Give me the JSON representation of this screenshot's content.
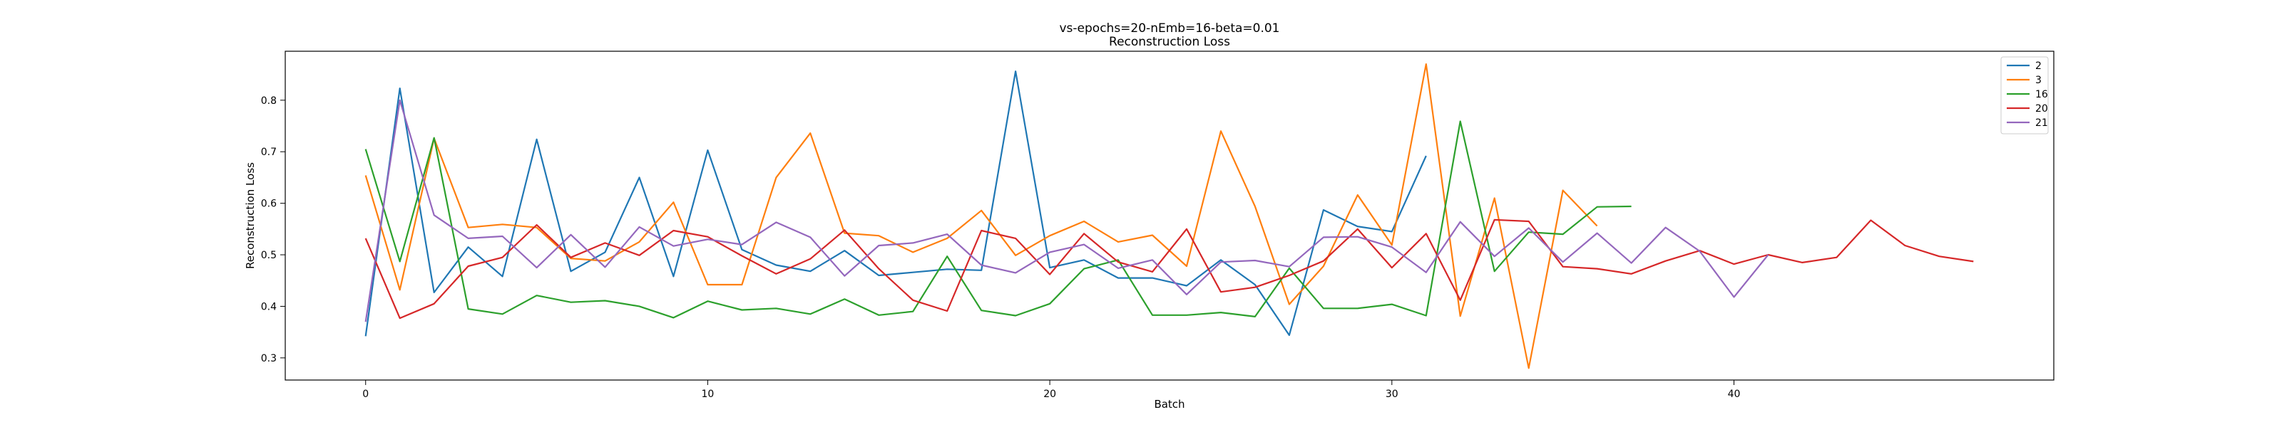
{
  "chart_data": {
    "type": "line",
    "title_lines": [
      "vs-epochs=20-nEmb=16-beta=0.01",
      "Reconstruction Loss"
    ],
    "xlabel": "Batch",
    "ylabel": "Reconstruction Loss",
    "xlim": [
      -2.35,
      49.35
    ],
    "ylim": [
      0.257,
      0.895
    ],
    "xticks": [
      0,
      10,
      20,
      30,
      40
    ],
    "yticks": [
      0.3,
      0.4,
      0.5,
      0.6,
      0.7,
      0.8
    ],
    "grid": false,
    "legend": "top-right",
    "series": [
      {
        "name": "2",
        "color": "#1f77b4",
        "y": [
          0.342,
          0.823,
          0.427,
          0.515,
          0.458,
          0.724,
          0.468,
          0.505,
          0.65,
          0.458,
          0.703,
          0.51,
          0.48,
          0.468,
          0.508,
          0.46,
          0.466,
          0.472,
          0.47,
          0.856,
          0.475,
          0.49,
          0.455,
          0.455,
          0.44,
          0.49,
          0.442,
          0.344,
          0.587,
          0.555,
          0.545,
          0.692
        ]
      },
      {
        "name": "3",
        "color": "#ff7f0e",
        "y": [
          0.654,
          0.432,
          0.726,
          0.553,
          0.559,
          0.553,
          0.493,
          0.488,
          0.525,
          0.602,
          0.442,
          0.442,
          0.65,
          0.736,
          0.542,
          0.537,
          0.505,
          0.532,
          0.586,
          0.499,
          0.537,
          0.565,
          0.525,
          0.538,
          0.478,
          0.74,
          0.594,
          0.404,
          0.478,
          0.616,
          0.519,
          0.87,
          0.381,
          0.61,
          0.28,
          0.625,
          0.556
        ]
      },
      {
        "name": "16",
        "color": "#2ca02c",
        "y": [
          0.705,
          0.487,
          0.727,
          0.395,
          0.385,
          0.421,
          0.408,
          0.411,
          0.4,
          0.378,
          0.41,
          0.393,
          0.396,
          0.385,
          0.414,
          0.383,
          0.39,
          0.497,
          0.392,
          0.382,
          0.405,
          0.473,
          0.49,
          0.383,
          0.383,
          0.388,
          0.38,
          0.474,
          0.396,
          0.396,
          0.404,
          0.382,
          0.759,
          0.468,
          0.544,
          0.54,
          0.593,
          0.594
        ]
      },
      {
        "name": "20",
        "color": "#d62728",
        "y": [
          0.532,
          0.377,
          0.405,
          0.478,
          0.495,
          0.558,
          0.495,
          0.523,
          0.499,
          0.547,
          0.535,
          0.498,
          0.463,
          0.492,
          0.548,
          0.473,
          0.412,
          0.391,
          0.547,
          0.532,
          0.462,
          0.541,
          0.486,
          0.467,
          0.55,
          0.428,
          0.437,
          0.46,
          0.488,
          0.55,
          0.475,
          0.541,
          0.412,
          0.568,
          0.565,
          0.477,
          0.473,
          0.463,
          0.488,
          0.508,
          0.482,
          0.5,
          0.485,
          0.495,
          0.567,
          0.518,
          0.497,
          0.487
        ]
      },
      {
        "name": "21",
        "color": "#9467bd",
        "y": [
          0.37,
          0.8,
          0.577,
          0.532,
          0.536,
          0.475,
          0.539,
          0.476,
          0.554,
          0.517,
          0.53,
          0.52,
          0.563,
          0.534,
          0.459,
          0.518,
          0.523,
          0.54,
          0.48,
          0.465,
          0.505,
          0.52,
          0.474,
          0.49,
          0.423,
          0.486,
          0.489,
          0.477,
          0.534,
          0.535,
          0.515,
          0.466,
          0.564,
          0.497,
          0.552,
          0.486,
          0.542,
          0.484,
          0.553,
          0.507,
          0.418,
          0.5
        ]
      }
    ]
  }
}
